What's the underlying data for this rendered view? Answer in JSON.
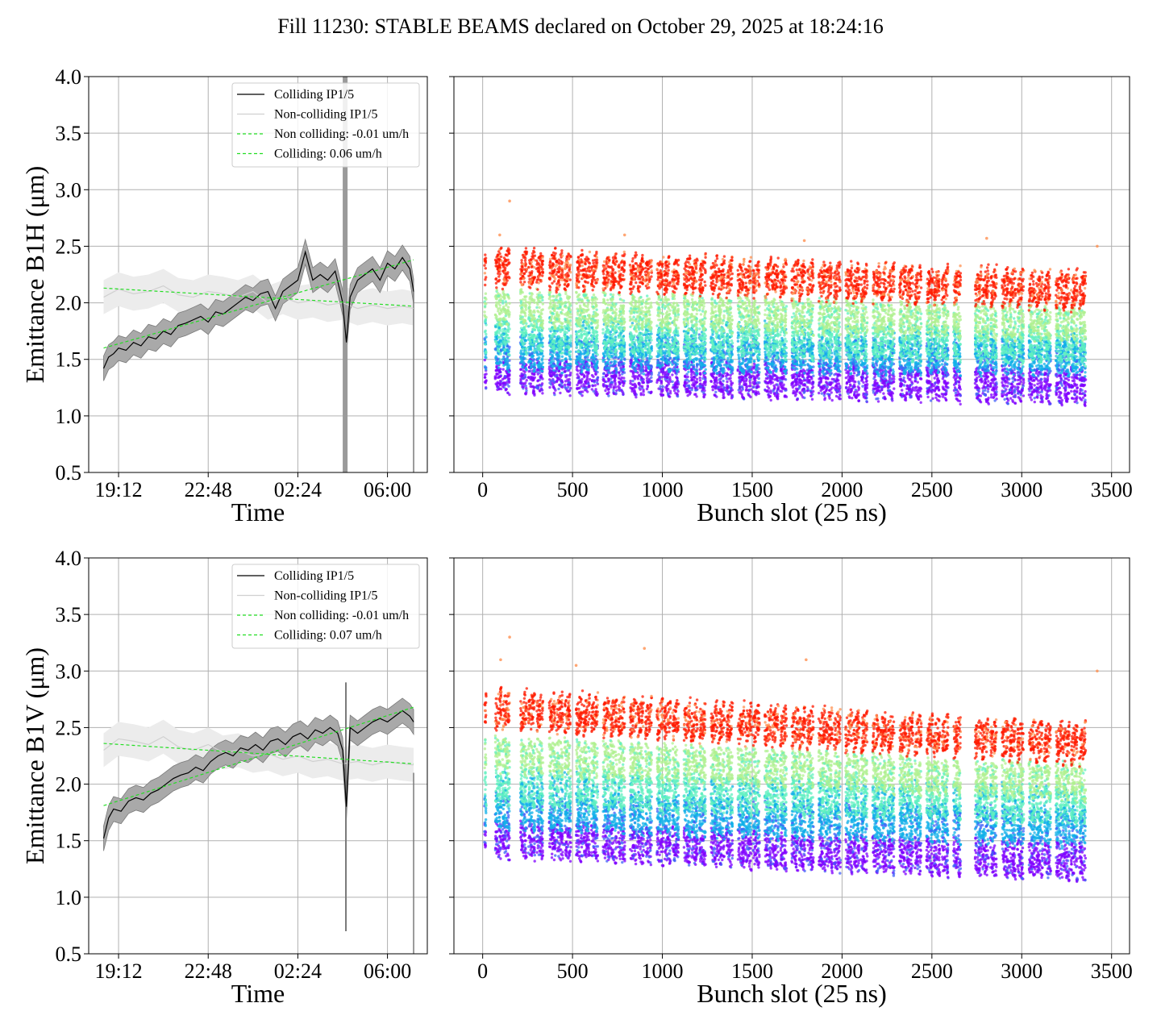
{
  "figure": {
    "suptitle": "Fill 11230: STABLE BEAMS declared on October 29, 2025 at 18:24:16",
    "colors": {
      "colliding": "#000000",
      "noncolliding": "#d0d0d0",
      "fit": "#22dd22",
      "band_colliding": "#a9a9a9",
      "band_noncolliding": "#ececec",
      "grid": "#b0b0b0",
      "rainbow": [
        "#8000ff",
        "#4060f8",
        "#10b0e8",
        "#60f0c0",
        "#b0f090",
        "#ff9050",
        "#ff1a00"
      ]
    }
  },
  "chart_data": [
    {
      "id": "b1h-time",
      "type": "line",
      "ylabel": "Emittance B1H (μm)",
      "xlabel": "Time",
      "x_ticks": [
        "19:12",
        "22:48",
        "02:24",
        "06:00"
      ],
      "x_tick_hours": [
        19.2,
        22.8,
        26.4,
        30.0
      ],
      "x_range_hours": [
        18.0,
        31.6
      ],
      "ylim": [
        0.5,
        4.0
      ],
      "y_ticks": [
        "0.5",
        "1.0",
        "1.5",
        "2.0",
        "2.5",
        "3.0",
        "3.5",
        "4.0"
      ],
      "grid": true,
      "legend_position": "upper right",
      "legend": [
        "Colliding IP1/5",
        "Non-colliding IP1/5",
        "Non colliding: -0.01 um/h",
        "Colliding: 0.06 um/h"
      ],
      "series": [
        {
          "name": "Colliding IP1/5",
          "x_hours": [
            18.6,
            18.8,
            19.0,
            19.2,
            19.5,
            19.8,
            20.1,
            20.4,
            20.7,
            21.0,
            21.3,
            21.6,
            21.9,
            22.2,
            22.5,
            22.8,
            23.1,
            23.4,
            23.7,
            24.0,
            24.3,
            24.6,
            24.9,
            25.2,
            25.5,
            25.8,
            26.1,
            26.4,
            26.7,
            27.0,
            27.3,
            27.6,
            27.9,
            28.1,
            28.2,
            28.35,
            28.5,
            28.8,
            29.1,
            29.4,
            29.7,
            30.0,
            30.3,
            30.6,
            30.9,
            31.05
          ],
          "y": [
            1.42,
            1.52,
            1.55,
            1.6,
            1.58,
            1.65,
            1.62,
            1.7,
            1.68,
            1.75,
            1.72,
            1.8,
            1.82,
            1.85,
            1.88,
            1.83,
            1.92,
            1.9,
            1.95,
            2.0,
            2.05,
            2.02,
            2.08,
            2.1,
            1.95,
            2.1,
            2.15,
            2.2,
            2.45,
            2.2,
            2.25,
            2.2,
            2.28,
            2.1,
            2.0,
            1.65,
            2.05,
            2.2,
            2.25,
            2.3,
            2.2,
            2.35,
            2.3,
            2.4,
            2.3,
            2.1
          ]
        },
        {
          "name": "Non-colliding IP1/5",
          "x_hours": [
            18.6,
            19.2,
            19.8,
            20.4,
            21.0,
            21.6,
            22.2,
            22.8,
            23.4,
            24.0,
            24.6,
            25.2,
            25.8,
            26.4,
            27.0,
            27.6,
            28.2,
            28.8,
            29.4,
            30.0,
            30.6,
            31.05
          ],
          "y": [
            2.05,
            2.12,
            2.08,
            2.1,
            2.15,
            2.07,
            2.05,
            2.1,
            2.08,
            2.05,
            2.1,
            2.0,
            2.05,
            2.0,
            2.02,
            1.98,
            2.0,
            1.95,
            1.98,
            1.95,
            1.97,
            1.95
          ]
        },
        {
          "name": "Non colliding: -0.01 um/h",
          "x_hours": [
            18.6,
            31.05
          ],
          "y": [
            2.13,
            1.97
          ]
        },
        {
          "name": "Colliding: 0.06 um/h",
          "x_hours": [
            18.6,
            31.05
          ],
          "y": [
            1.6,
            2.38
          ]
        }
      ]
    },
    {
      "id": "b1h-bunch",
      "type": "scatter",
      "ylabel": "",
      "xlabel": "Bunch slot (25 ns)",
      "x_ticks": [
        "0",
        "500",
        "1000",
        "1500",
        "2000",
        "2500",
        "3000",
        "3500"
      ],
      "x_tick_values": [
        0,
        500,
        1000,
        1500,
        2000,
        2500,
        3000,
        3500
      ],
      "xlim": [
        -160,
        3600
      ],
      "ylim": [
        0.5,
        4.0
      ],
      "grid": true,
      "train_starts": [
        10,
        70,
        110,
        210,
        255,
        300,
        370,
        410,
        455,
        520,
        560,
        605,
        670,
        710,
        755,
        820,
        860,
        905,
        970,
        1010,
        1055,
        1120,
        1160,
        1205,
        1270,
        1310,
        1355,
        1420,
        1460,
        1505,
        1570,
        1610,
        1655,
        1720,
        1760,
        1805,
        1870,
        1910,
        1955,
        2020,
        2060,
        2105,
        2170,
        2210,
        2255,
        2320,
        2360,
        2405,
        2470,
        2510,
        2555,
        2620,
        2740,
        2780,
        2825,
        2890,
        2930,
        2975,
        3040,
        3080,
        3125,
        3190,
        3230,
        3275,
        3320
      ],
      "train_widths": [
        10,
        35,
        40,
        36,
        36,
        36,
        36,
        36,
        36,
        36,
        36,
        36,
        36,
        36,
        36,
        36,
        36,
        36,
        36,
        36,
        36,
        36,
        36,
        36,
        36,
        36,
        36,
        36,
        36,
        36,
        36,
        36,
        36,
        36,
        36,
        36,
        36,
        36,
        36,
        36,
        36,
        36,
        36,
        36,
        36,
        36,
        36,
        36,
        36,
        36,
        36,
        40,
        36,
        36,
        36,
        36,
        36,
        36,
        36,
        36,
        36,
        36,
        36,
        36,
        36
      ],
      "band_start_y": [
        2.25,
        2.0,
        1.75,
        1.6,
        1.4
      ],
      "band_end_y": [
        2.05,
        1.85,
        1.65,
        1.55,
        1.3
      ],
      "band_spread": 0.14,
      "outliers": [
        {
          "x": 150,
          "y": 2.9
        },
        {
          "x": 95,
          "y": 2.6
        },
        {
          "x": 790,
          "y": 2.6
        },
        {
          "x": 1790,
          "y": 2.55
        },
        {
          "x": 2805,
          "y": 2.57
        },
        {
          "x": 3420,
          "y": 2.5
        }
      ]
    },
    {
      "id": "b1v-time",
      "type": "line",
      "ylabel": "Emittance B1V (μm)",
      "xlabel": "Time",
      "x_ticks": [
        "19:12",
        "22:48",
        "02:24",
        "06:00"
      ],
      "x_tick_hours": [
        19.2,
        22.8,
        26.4,
        30.0
      ],
      "x_range_hours": [
        18.0,
        31.6
      ],
      "ylim": [
        0.5,
        4.0
      ],
      "y_ticks": [
        "0.5",
        "1.0",
        "1.5",
        "2.0",
        "2.5",
        "3.0",
        "3.5",
        "4.0"
      ],
      "grid": true,
      "legend_position": "upper right",
      "legend": [
        "Colliding IP1/5",
        "Non-colliding IP1/5",
        "Non colliding: -0.01 um/h",
        "Colliding: 0.07 um/h"
      ],
      "series": [
        {
          "name": "Colliding IP1/5",
          "x_hours": [
            18.6,
            18.8,
            19.0,
            19.3,
            19.6,
            19.9,
            20.2,
            20.5,
            20.8,
            21.1,
            21.4,
            21.7,
            22.0,
            22.3,
            22.6,
            22.9,
            23.2,
            23.5,
            23.8,
            24.1,
            24.4,
            24.7,
            25.0,
            25.3,
            25.6,
            25.9,
            26.2,
            26.5,
            26.8,
            27.1,
            27.4,
            27.7,
            28.0,
            28.2,
            28.35,
            28.5,
            28.8,
            29.1,
            29.4,
            29.7,
            30.0,
            30.3,
            30.6,
            30.9,
            31.05
          ],
          "y": [
            1.52,
            1.7,
            1.78,
            1.76,
            1.85,
            1.88,
            1.86,
            1.92,
            1.95,
            2.0,
            2.05,
            2.08,
            2.1,
            2.15,
            2.12,
            2.2,
            2.25,
            2.28,
            2.25,
            2.32,
            2.3,
            2.35,
            2.3,
            2.38,
            2.4,
            2.35,
            2.42,
            2.45,
            2.4,
            2.48,
            2.45,
            2.5,
            2.45,
            2.3,
            1.8,
            2.5,
            2.45,
            2.5,
            2.55,
            2.58,
            2.55,
            2.6,
            2.65,
            2.6,
            2.55
          ]
        },
        {
          "name": "Non-colliding IP1/5",
          "x_hours": [
            18.6,
            19.2,
            19.8,
            20.4,
            21.0,
            21.6,
            22.2,
            22.8,
            23.4,
            24.0,
            24.6,
            25.2,
            25.8,
            26.4,
            27.0,
            27.6,
            28.2,
            28.8,
            29.4,
            30.0,
            30.6,
            31.05
          ],
          "y": [
            2.3,
            2.4,
            2.38,
            2.35,
            2.42,
            2.33,
            2.3,
            2.35,
            2.28,
            2.3,
            2.25,
            2.27,
            2.22,
            2.25,
            2.2,
            2.22,
            2.18,
            2.2,
            2.17,
            2.2,
            2.18,
            2.17
          ]
        },
        {
          "name": "Non colliding: -0.01 um/h",
          "x_hours": [
            18.6,
            31.05
          ],
          "y": [
            2.36,
            2.18
          ]
        },
        {
          "name": "Colliding: 0.07 um/h",
          "x_hours": [
            18.6,
            31.05
          ],
          "y": [
            1.81,
            2.68
          ]
        }
      ]
    },
    {
      "id": "b1v-bunch",
      "type": "scatter",
      "ylabel": "",
      "xlabel": "Bunch slot (25 ns)",
      "x_ticks": [
        "0",
        "500",
        "1000",
        "1500",
        "2000",
        "2500",
        "3000",
        "3500"
      ],
      "x_tick_values": [
        0,
        500,
        1000,
        1500,
        2000,
        2500,
        3000,
        3500
      ],
      "xlim": [
        -160,
        3600
      ],
      "ylim": [
        0.5,
        4.0
      ],
      "grid": true,
      "train_starts": [
        10,
        70,
        110,
        210,
        255,
        300,
        370,
        410,
        455,
        520,
        560,
        605,
        670,
        710,
        755,
        820,
        860,
        905,
        970,
        1010,
        1055,
        1120,
        1160,
        1205,
        1270,
        1310,
        1355,
        1420,
        1460,
        1505,
        1570,
        1610,
        1655,
        1720,
        1760,
        1805,
        1870,
        1910,
        1955,
        2020,
        2060,
        2105,
        2170,
        2210,
        2255,
        2320,
        2360,
        2405,
        2470,
        2510,
        2555,
        2620,
        2740,
        2780,
        2825,
        2890,
        2930,
        2975,
        3040,
        3080,
        3125,
        3190,
        3230,
        3275,
        3320
      ],
      "train_widths": [
        10,
        35,
        40,
        36,
        36,
        36,
        36,
        36,
        36,
        36,
        36,
        36,
        36,
        36,
        36,
        36,
        36,
        36,
        36,
        36,
        36,
        36,
        36,
        36,
        36,
        36,
        36,
        36,
        36,
        36,
        36,
        36,
        36,
        36,
        36,
        36,
        36,
        36,
        36,
        36,
        36,
        36,
        36,
        36,
        36,
        36,
        36,
        36,
        36,
        36,
        36,
        40,
        36,
        36,
        36,
        36,
        36,
        36,
        36,
        36,
        36,
        36,
        36,
        36,
        36
      ],
      "band_start_y": [
        2.6,
        2.3,
        2.0,
        1.8,
        1.55
      ],
      "band_end_y": [
        2.3,
        2.05,
        1.85,
        1.65,
        1.35
      ],
      "band_spread": 0.15,
      "outliers": [
        {
          "x": 150,
          "y": 3.3
        },
        {
          "x": 100,
          "y": 3.1
        },
        {
          "x": 520,
          "y": 3.05
        },
        {
          "x": 900,
          "y": 3.2
        },
        {
          "x": 1800,
          "y": 3.1
        },
        {
          "x": 3420,
          "y": 3.0
        }
      ]
    }
  ]
}
